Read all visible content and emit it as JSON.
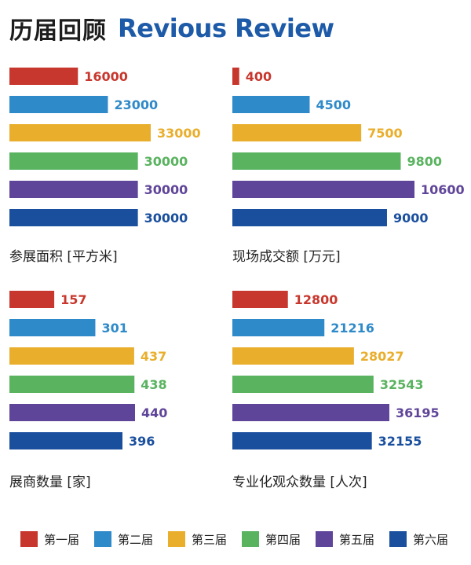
{
  "header": {
    "title_cn": "历届回顾",
    "title_en": "Revious Review"
  },
  "colors": [
    "#c8372d",
    "#2f8ac9",
    "#e9ae2c",
    "#59b35f",
    "#5f4599",
    "#1a4f9e"
  ],
  "chart_data": [
    {
      "type": "bar",
      "orientation": "horizontal",
      "categories": [
        "第一届",
        "第二届",
        "第三届",
        "第四届",
        "第五届",
        "第六届"
      ],
      "values": [
        16000,
        23000,
        33000,
        30000,
        30000,
        30000
      ],
      "xlabel": "参展面积 [平方米]"
    },
    {
      "type": "bar",
      "orientation": "horizontal",
      "categories": [
        "第一届",
        "第二届",
        "第三届",
        "第四届",
        "第五届",
        "第六届"
      ],
      "values": [
        400,
        4500,
        7500,
        9800,
        10600,
        9000
      ],
      "xlabel": "现场成交额 [万元]"
    },
    {
      "type": "bar",
      "orientation": "horizontal",
      "categories": [
        "第一届",
        "第二届",
        "第三届",
        "第四届",
        "第五届",
        "第六届"
      ],
      "values": [
        157,
        301,
        437,
        438,
        440,
        396
      ],
      "xlabel": "展商数量 [家]"
    },
    {
      "type": "bar",
      "orientation": "horizontal",
      "categories": [
        "第一届",
        "第二届",
        "第三届",
        "第四届",
        "第五届",
        "第六届"
      ],
      "values": [
        12800,
        21216,
        28027,
        32543,
        36195,
        32155
      ],
      "xlabel": "专业化观众数量 [人次]"
    }
  ],
  "legend": [
    {
      "label": "第一届",
      "color": "#c8372d"
    },
    {
      "label": "第二届",
      "color": "#2f8ac9"
    },
    {
      "label": "第三届",
      "color": "#e9ae2c"
    },
    {
      "label": "第四届",
      "color": "#59b35f"
    },
    {
      "label": "第五届",
      "color": "#5f4599"
    },
    {
      "label": "第六届",
      "color": "#1a4f9e"
    }
  ]
}
